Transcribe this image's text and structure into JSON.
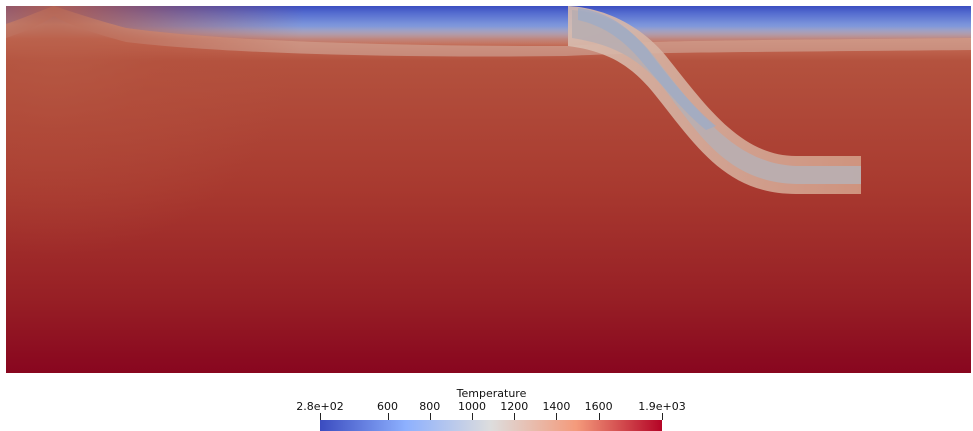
{
  "visualization": {
    "field": "Temperature",
    "colormap": "Cool to Warm",
    "colormap_stops": [
      "#3b4cc0",
      "#8db0fe",
      "#dddddd",
      "#f49a7b",
      "#b40426"
    ],
    "background": "#ffffff"
  },
  "colorbar": {
    "title": "Temperature",
    "range": [
      280,
      1900
    ],
    "ticks": [
      {
        "value": 280,
        "label": "2.8e+02"
      },
      {
        "value": 600,
        "label": "600"
      },
      {
        "value": 800,
        "label": "800"
      },
      {
        "value": 1000,
        "label": "1000"
      },
      {
        "value": 1200,
        "label": "1200"
      },
      {
        "value": 1400,
        "label": "1400"
      },
      {
        "value": 1600,
        "label": "1600"
      },
      {
        "value": 1900,
        "label": "1.9e+03"
      }
    ]
  }
}
